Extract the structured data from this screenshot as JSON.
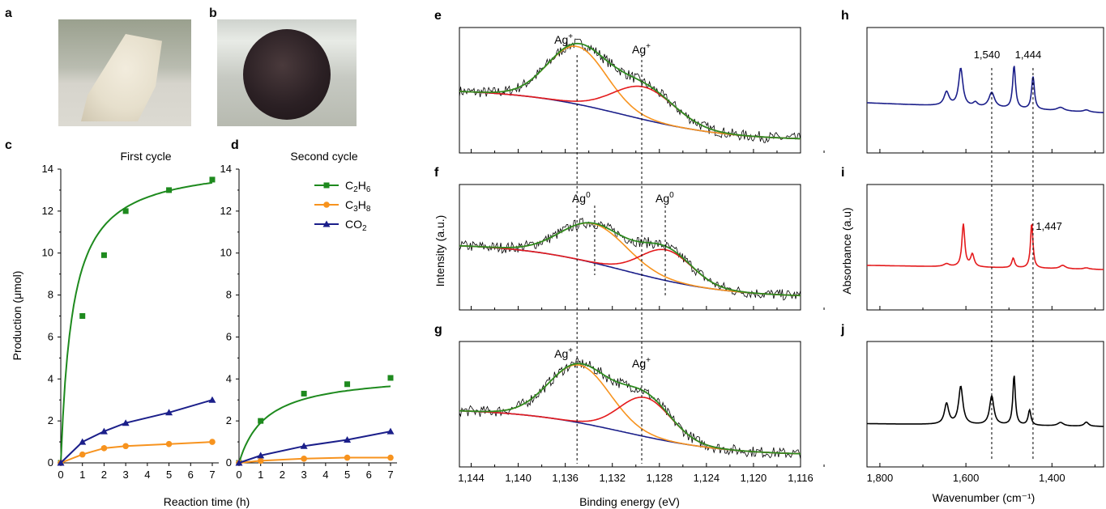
{
  "panel_letters": {
    "a": "a",
    "b": "b",
    "c": "c",
    "d": "d",
    "e": "e",
    "f": "f",
    "g": "g",
    "h": "h",
    "i": "i",
    "j": "j"
  },
  "colors": {
    "c2h6": "#1e8a1e",
    "c3h8": "#f7931e",
    "co2": "#1b1f8a",
    "red_fit": "#e41a1c",
    "green_fit": "#2e8b20",
    "raw": "#000000"
  },
  "chart_data": [
    {
      "id": "c",
      "type": "line",
      "title": "First cycle",
      "xlabel": "Reaction time (h)",
      "ylabel": "Production (μmol)",
      "xlim": [
        0,
        7.3
      ],
      "ylim": [
        0,
        14
      ],
      "xticks": [
        0,
        1,
        2,
        3,
        4,
        5,
        6,
        7
      ],
      "yticks": [
        0,
        2,
        4,
        6,
        8,
        10,
        12,
        14
      ],
      "x": [
        0,
        1,
        2,
        3,
        5,
        7
      ],
      "series": [
        {
          "name": "C2H6",
          "marker": "square",
          "values": [
            0,
            7,
            9.9,
            12,
            13,
            13.5
          ]
        },
        {
          "name": "C3H8",
          "marker": "circle",
          "values": [
            0,
            0.4,
            0.7,
            0.8,
            0.9,
            1.0
          ]
        },
        {
          "name": "CO2",
          "marker": "triangle",
          "values": [
            0,
            1.0,
            1.5,
            1.9,
            2.4,
            3.0
          ]
        }
      ]
    },
    {
      "id": "d",
      "type": "line",
      "title": "Second cycle",
      "xlabel": "",
      "ylabel": "",
      "xlim": [
        0,
        7.3
      ],
      "ylim": [
        0,
        14
      ],
      "xticks": [
        0,
        1,
        2,
        3,
        4,
        5,
        6,
        7
      ],
      "yticks": [
        0,
        2,
        4,
        6,
        8,
        10,
        12,
        14
      ],
      "x": [
        0,
        1,
        3,
        5,
        7
      ],
      "series": [
        {
          "name": "C2H6",
          "marker": "square",
          "values": [
            0,
            2.0,
            3.3,
            3.75,
            4.05
          ]
        },
        {
          "name": "C3H8",
          "marker": "circle",
          "values": [
            0,
            0.1,
            0.2,
            0.25,
            0.25
          ]
        },
        {
          "name": "CO2",
          "marker": "triangle",
          "values": [
            0,
            0.35,
            0.8,
            1.1,
            1.5
          ]
        }
      ],
      "legend": {
        "placement": "top-right",
        "entries": [
          {
            "base": "C",
            "sub1": "2",
            "mid": "H",
            "sub2": "6"
          },
          {
            "base": "C",
            "sub1": "3",
            "mid": "H",
            "sub2": "8"
          },
          {
            "base": "CO",
            "sub1": "2",
            "mid": "",
            "sub2": ""
          }
        ]
      }
    },
    {
      "id": "efg",
      "type": "line",
      "xlabel": "Binding energy (eV)",
      "ylabel": "Intensity (a.u.)",
      "xlim": [
        1145,
        1116
      ],
      "xticks": [
        1144,
        1140,
        1136,
        1132,
        1128,
        1124,
        1120,
        1116
      ],
      "xtick_labels": [
        "1,144",
        "1,140",
        "1,136",
        "1,132",
        "1,128",
        "1,124",
        "1,120",
        "1,116"
      ],
      "dashed_lines_x": [
        1135,
        1129.5
      ],
      "panels": [
        {
          "id": "e",
          "peaks": [
            {
              "x": 1135,
              "label": "Ag",
              "sup": "+"
            },
            {
              "x": 1129.5,
              "label": "Ag",
              "sup": "+"
            }
          ]
        },
        {
          "id": "f",
          "peaks": [
            {
              "x": 1133.5,
              "label": "Ag",
              "sup": "0"
            },
            {
              "x": 1127.5,
              "label": "Ag",
              "sup": "0"
            }
          ]
        },
        {
          "id": "g",
          "peaks": [
            {
              "x": 1135,
              "label": "Ag",
              "sup": "+"
            },
            {
              "x": 1129.5,
              "label": "Ag",
              "sup": "+"
            }
          ]
        }
      ]
    },
    {
      "id": "hij",
      "type": "line",
      "xlabel": "Wavenumber (cm⁻¹)",
      "ylabel": "Absorbance (a.u)",
      "xlim": [
        1830,
        1280
      ],
      "xticks": [
        1800,
        1600,
        1400
      ],
      "xtick_labels": [
        "1,800",
        "1,600",
        "1,400"
      ],
      "dashed_lines_x": [
        1540,
        1444
      ],
      "panels": [
        {
          "id": "h",
          "annotations": [
            {
              "x": 1540,
              "label": "1,540"
            },
            {
              "x": 1444,
              "label": "1,444"
            }
          ]
        },
        {
          "id": "i",
          "annotations": [
            {
              "x": 1447,
              "label": "1,447"
            }
          ]
        },
        {
          "id": "j",
          "annotations": []
        }
      ]
    }
  ]
}
